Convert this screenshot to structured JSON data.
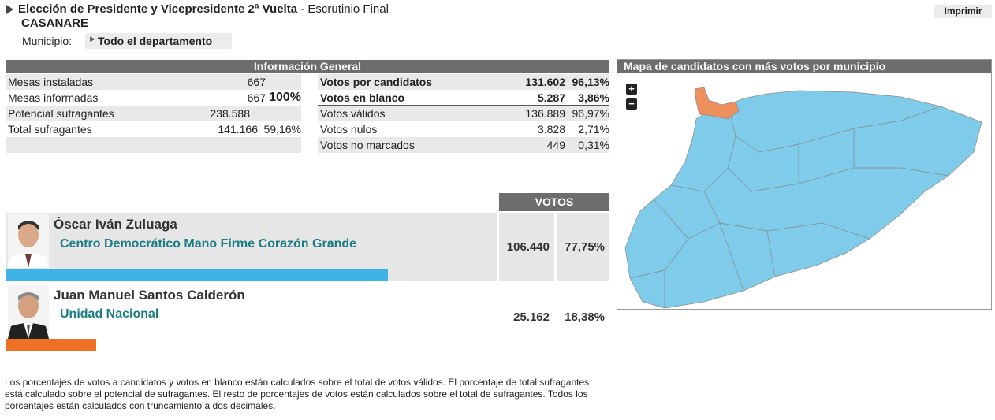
{
  "header": {
    "title_bold": "Elección de Presidente y Vicepresidente 2ª Vuelta",
    "title_rest": "- Escrutinio Final",
    "region": "CASANARE",
    "municipio_label": "Municipio:",
    "municipio_value": "Todo el departamento",
    "print_button": "Imprimir"
  },
  "general": {
    "title": "Información General",
    "left_rows": [
      {
        "label": "Mesas instaladas",
        "value": "667"
      },
      {
        "label": "Mesas informadas",
        "value": "667",
        "percent": "100%"
      },
      {
        "label": "Potencial sufragantes",
        "value": "238.588"
      },
      {
        "label": "Total sufragantes",
        "value": "141.166",
        "percent": "59,16%"
      }
    ],
    "right_rows": [
      {
        "label": "Votos por candidatos",
        "value": "131.602",
        "percent": "96,13%"
      },
      {
        "label": "Votos en blanco",
        "value": "5.287",
        "percent": "3,86%"
      },
      {
        "label": "Votos válidos",
        "value": "136.889",
        "percent": "96,97%"
      },
      {
        "label": "Votos nulos",
        "value": "3.828",
        "percent": "2,71%"
      },
      {
        "label": "Votos no marcados",
        "value": "449",
        "percent": "0,31%"
      }
    ]
  },
  "candidates": {
    "header": "VOTOS",
    "rows": [
      {
        "name": "Óscar Iván Zuluaga",
        "party": "Centro Democrático Mano Firme Corazón Grande",
        "votes": "106.440",
        "share": 77.75,
        "share_label": "77,75%",
        "color": "#3db3e6"
      },
      {
        "name": "Juan Manuel Santos Calderón",
        "party": "Unidad Nacional",
        "votes": "25.162",
        "share": 18.38,
        "share_label": "18,38%",
        "color": "#ef7126"
      }
    ]
  },
  "map": {
    "title": "Mapa de candidatos con más votos por municipio",
    "zoom_in": "+",
    "zoom_out": "−"
  },
  "footnote": "Los porcentajes de votos a candidatos y votos en blanco están calculados sobre el total de votos válidos. El porcentaje de total sufragantes está calculado sobre el potencial de sufragantes. El resto de porcentajes de votos están calculados sobre el total de sufragantes. Todos los porcentajes están calculados con truncamiento a dos decimales."
}
